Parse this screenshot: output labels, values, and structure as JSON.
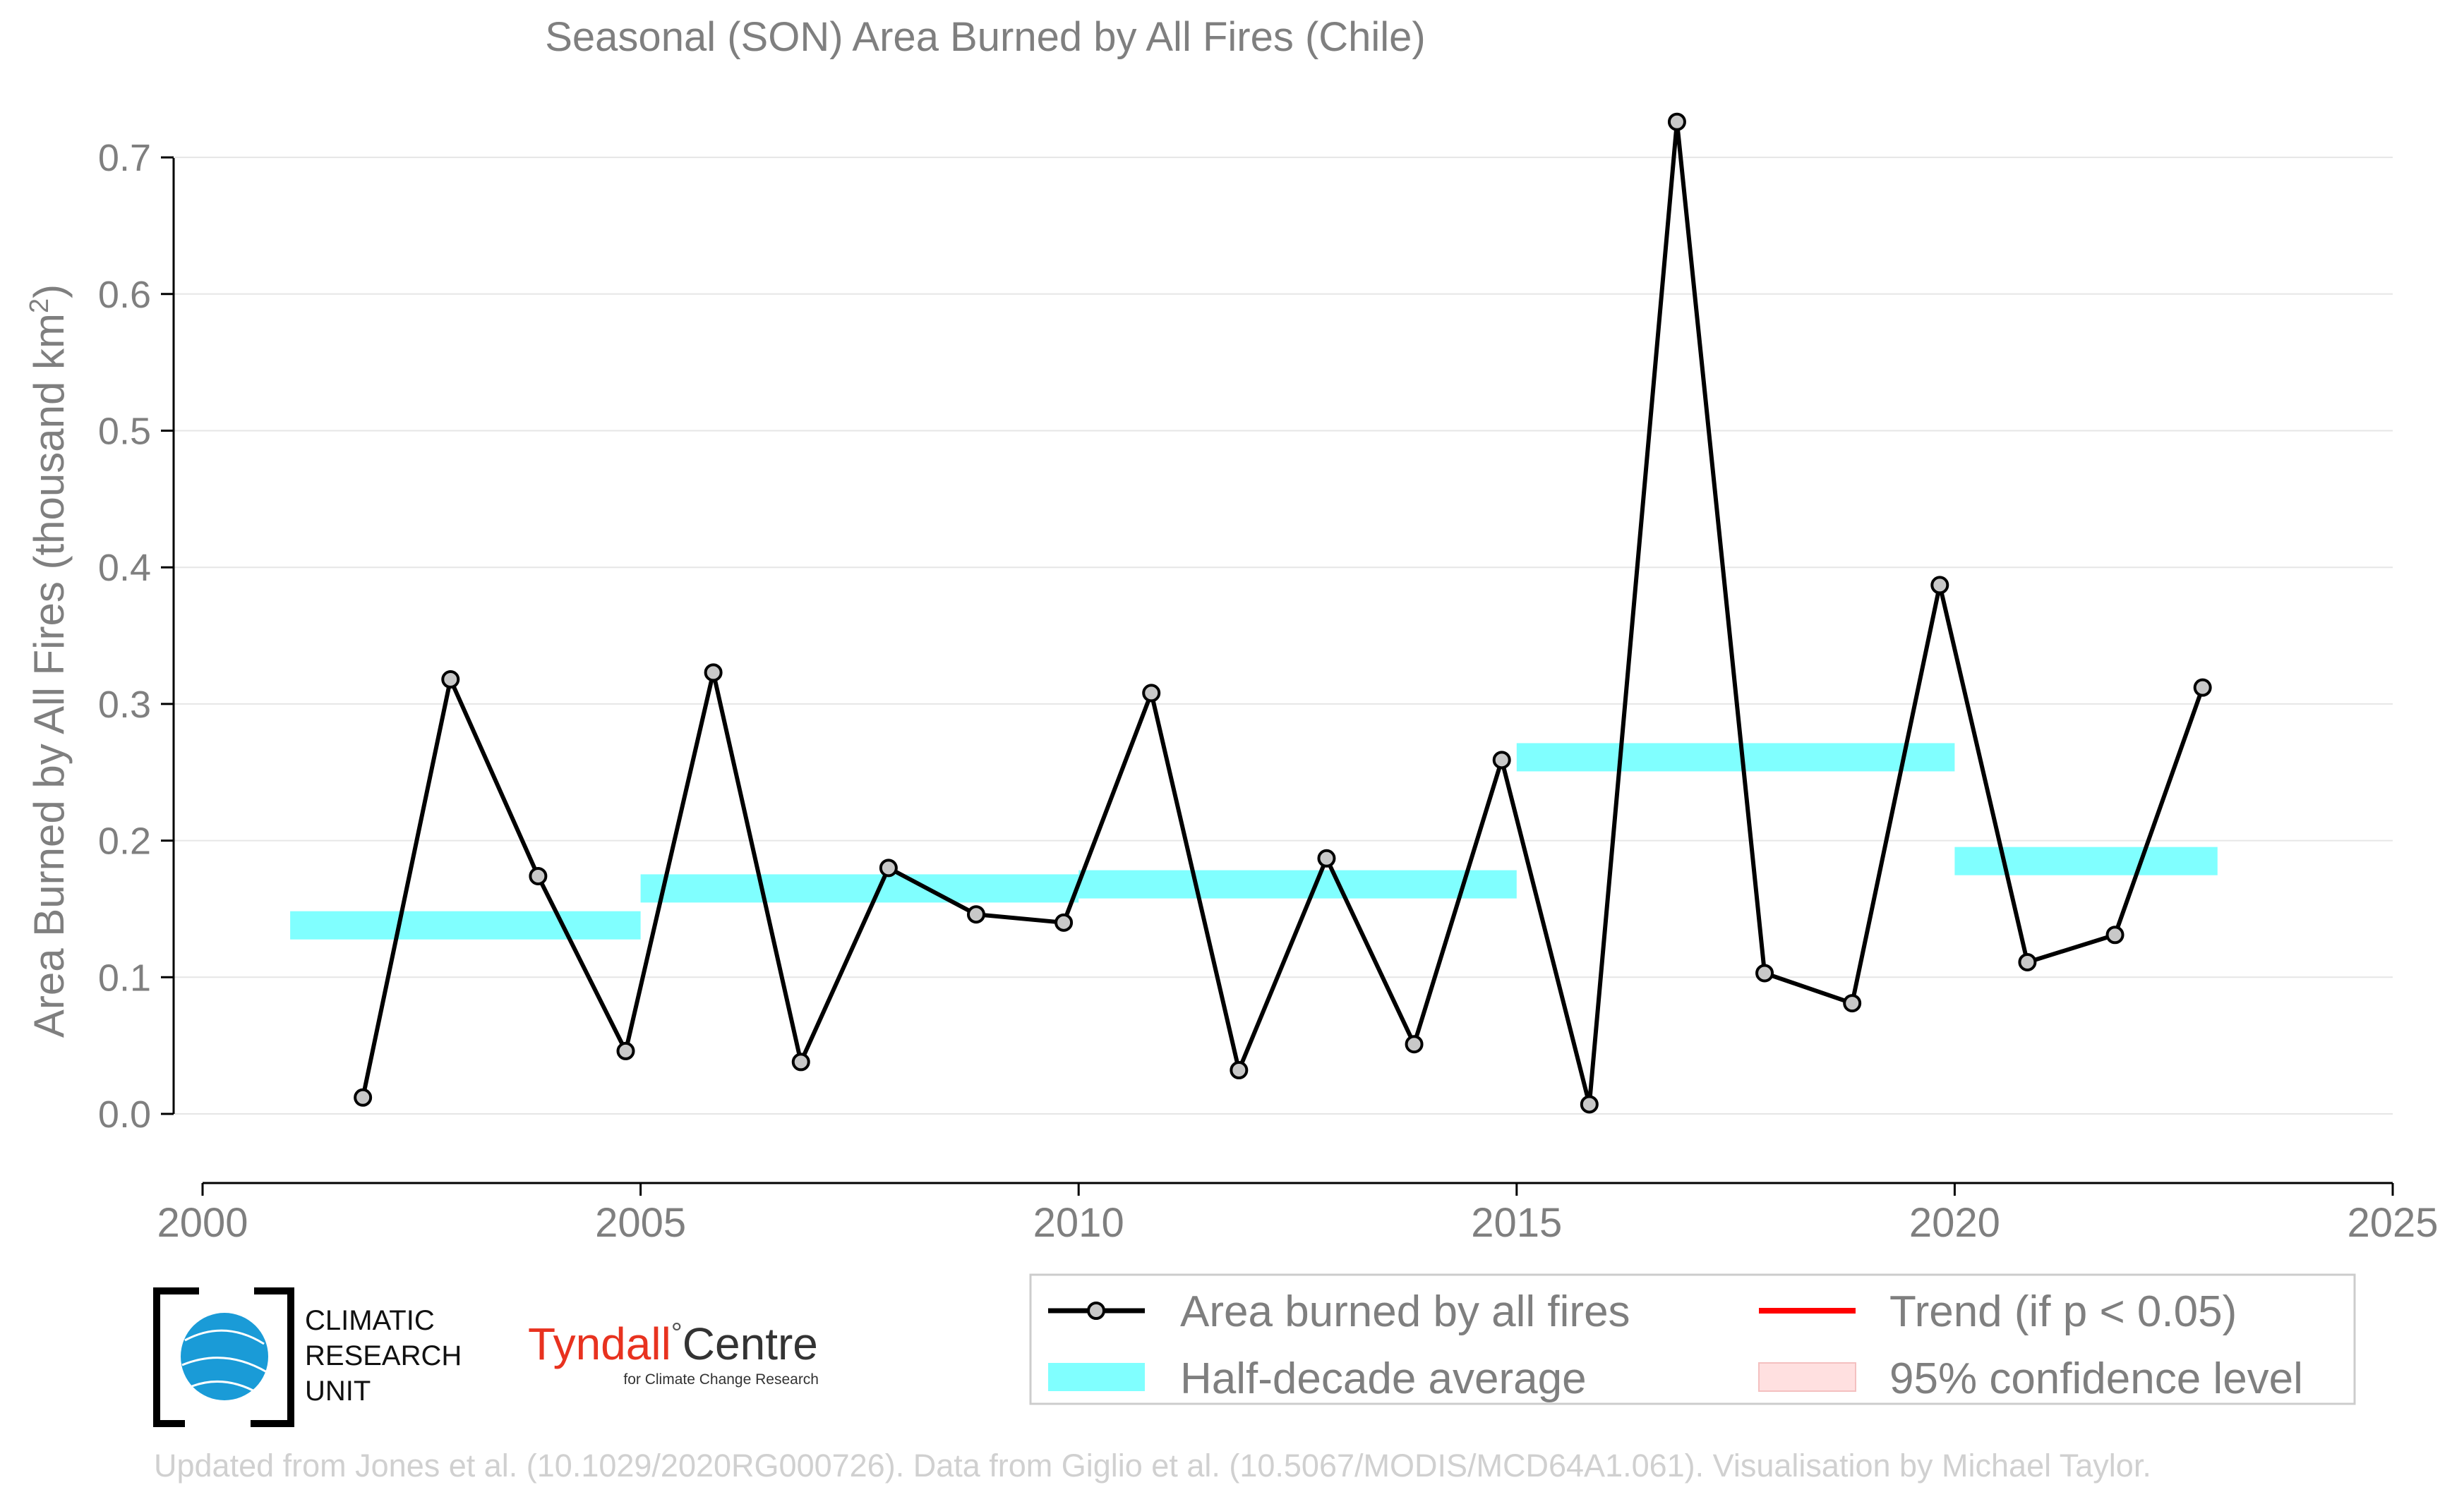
{
  "chart_data": {
    "type": "line",
    "title": "Seasonal (SON) Area Burned by All Fires (Chile)",
    "ylabel_main": "Area Burned by All Fires (thousand km",
    "ylabel_sup": "2",
    "ylabel_end": ")",
    "xlim": [
      2000,
      2025
    ],
    "ylim": [
      -0.05,
      0.75
    ],
    "x_ticks": [
      2000,
      2005,
      2010,
      2015,
      2020,
      2025
    ],
    "x_tick_labels": [
      "2000",
      "2005",
      "2010",
      "2015",
      "2020",
      "2025"
    ],
    "y_ticks": [
      0.0,
      0.1,
      0.2,
      0.3,
      0.4,
      0.5,
      0.6,
      0.7
    ],
    "y_tick_labels": [
      "0.0",
      "0.1",
      "0.2",
      "0.3",
      "0.4",
      "0.5",
      "0.6",
      "0.7"
    ],
    "grid": "horizontal",
    "legend_position": "bottom-right",
    "series": [
      {
        "name": "Area burned by all fires",
        "color": "#000000",
        "marker_fill": "#c8c8c8",
        "x": [
          2001.83,
          2002.83,
          2003.83,
          2004.83,
          2005.83,
          2006.83,
          2007.83,
          2008.83,
          2009.83,
          2010.83,
          2011.83,
          2012.83,
          2013.83,
          2014.83,
          2015.83,
          2016.83,
          2017.83,
          2018.83,
          2019.83,
          2020.83,
          2021.83,
          2022.83
        ],
        "values": [
          0.012,
          0.318,
          0.174,
          0.046,
          0.323,
          0.038,
          0.18,
          0.146,
          0.14,
          0.308,
          0.032,
          0.187,
          0.051,
          0.259,
          0.007,
          0.726,
          0.103,
          0.081,
          0.387,
          0.111,
          0.131,
          0.312
        ]
      }
    ],
    "half_decade_averages": {
      "name": "Half-decade average",
      "color": "#80ffff",
      "segments": [
        {
          "x_start": 2001,
          "x_end": 2005,
          "value": 0.138
        },
        {
          "x_start": 2005,
          "x_end": 2010,
          "value": 0.165
        },
        {
          "x_start": 2010,
          "x_end": 2015,
          "value": 0.168
        },
        {
          "x_start": 2015,
          "x_end": 2020,
          "value": 0.261
        },
        {
          "x_start": 2020,
          "x_end": 2023,
          "value": 0.185
        }
      ]
    },
    "legend": [
      {
        "key": "line",
        "label": "Area burned by all fires",
        "color": "#000000"
      },
      {
        "key": "trend",
        "label": "Trend (if p < 0.05)",
        "color": "#ff0000"
      },
      {
        "key": "band",
        "label": "Half-decade average",
        "color": "#80ffff"
      },
      {
        "key": "ci",
        "label": "95% confidence level",
        "color": "#ffe0e0"
      }
    ]
  },
  "logos": {
    "cru_line1": "CLIMATIC",
    "cru_line2": "RESEARCH",
    "cru_line3": "UNIT",
    "tyndall_name_part1": "Tyndall",
    "tyndall_degree": "°",
    "tyndall_name_part2": "Centre",
    "tyndall_sub": "for Climate Change Research"
  },
  "credit": "Updated from Jones et al. (10.1029/2020RG000726). Data from Giglio et al. (10.5067/MODIS/MCD64A1.061). Visualisation by Michael Taylor."
}
